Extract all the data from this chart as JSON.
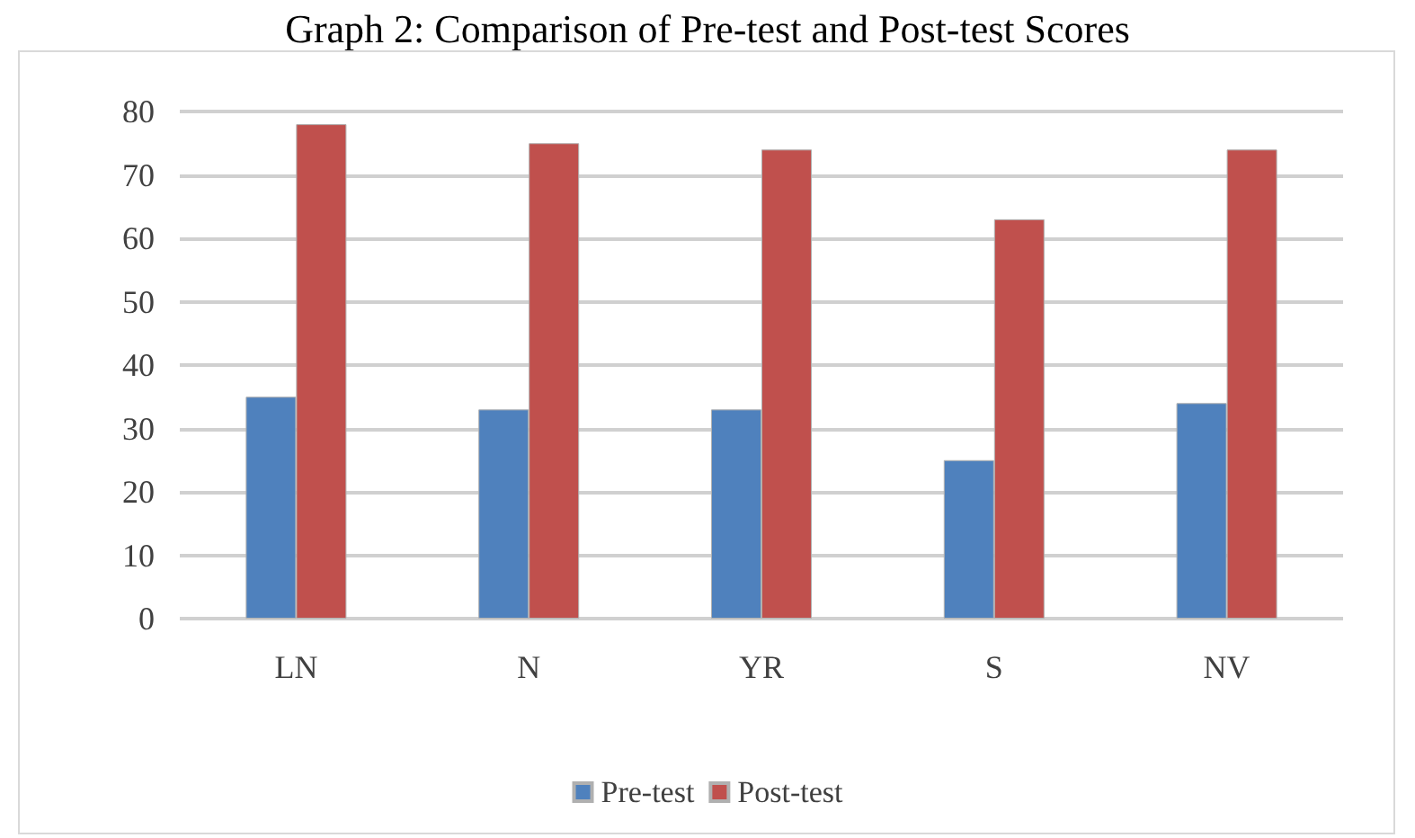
{
  "chart_data": {
    "type": "bar",
    "title": "Graph 2: Comparison of Pre-test and Post-test Scores",
    "categories": [
      "LN",
      "N",
      "YR",
      "S",
      "NV"
    ],
    "series": [
      {
        "name": "Pre-test",
        "color": "#4f81bd",
        "values": [
          35,
          33,
          33,
          25,
          34
        ]
      },
      {
        "name": "Post-test",
        "color": "#c0504d",
        "values": [
          78,
          75,
          74,
          63,
          74
        ]
      }
    ],
    "ylim": [
      0,
      80
    ],
    "yticks": [
      0,
      10,
      20,
      30,
      40,
      50,
      60,
      70,
      80
    ],
    "grid": "y",
    "legend": "bottom"
  }
}
